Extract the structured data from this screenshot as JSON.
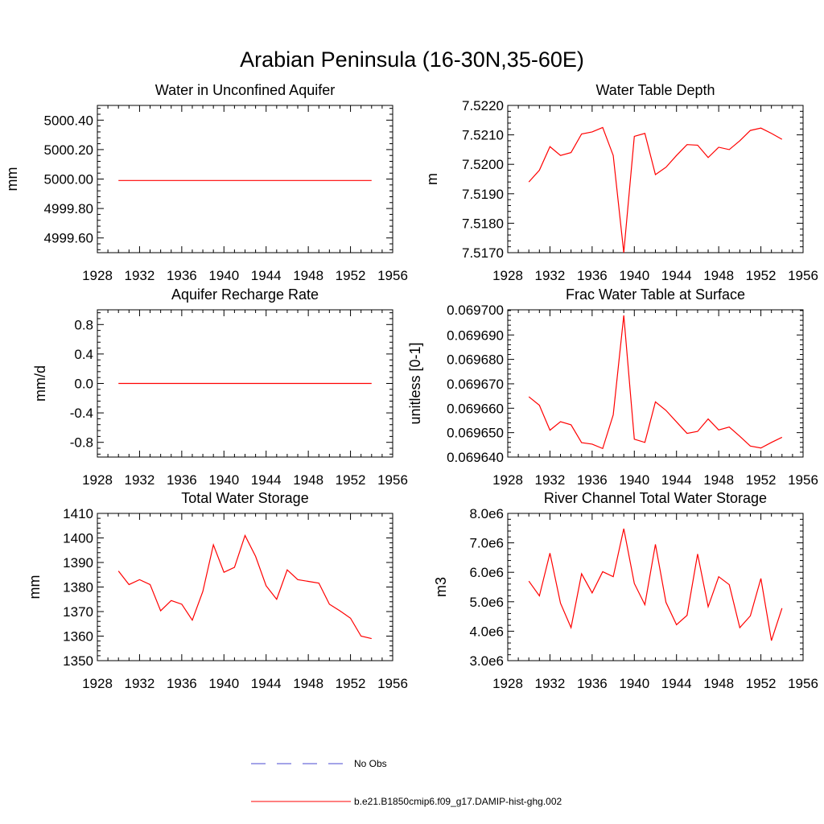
{
  "figure": {
    "title": "Arabian Peninsula (16-30N,35-60E)"
  },
  "colors": {
    "model_line": "#ff0000",
    "obs_line": "#4a4ad0"
  },
  "legend": {
    "entries": [
      {
        "label": "No Obs",
        "style": "dashed",
        "color": "#4a4ad0"
      },
      {
        "label": "b.e21.B1850cmip6.f09_g17.DAMIP-hist-ghg.002",
        "style": "solid",
        "color": "#ff0000"
      }
    ]
  },
  "chart_data": [
    {
      "id": "aquifer",
      "type": "line",
      "title": "Water in Unconfined Aquifer",
      "ylabel": "mm",
      "xlabel": "",
      "xlim": [
        1928,
        1956
      ],
      "ylim": [
        4999.5,
        5000.5
      ],
      "xticks": [
        1928,
        1932,
        1936,
        1940,
        1944,
        1948,
        1952,
        1956
      ],
      "xtick_labels": [
        "1928",
        "1932",
        "1936",
        "1940",
        "1944",
        "1948",
        "1952",
        "1956"
      ],
      "yticks": [
        4999.6,
        4999.8,
        5000.0,
        5000.2,
        5000.4
      ],
      "ytick_labels": [
        "4999.60",
        "4999.80",
        "5000.00",
        "5000.20",
        "5000.40"
      ],
      "series": [
        {
          "color": "#ff0000",
          "x": [
            1930,
            1954
          ],
          "y": [
            4999.99,
            4999.99
          ]
        }
      ]
    },
    {
      "id": "wtd",
      "type": "line",
      "title": "Water Table Depth",
      "ylabel": "m",
      "xlabel": "",
      "xlim": [
        1928,
        1956
      ],
      "ylim": [
        7.517,
        7.522
      ],
      "xticks": [
        1928,
        1932,
        1936,
        1940,
        1944,
        1948,
        1952,
        1956
      ],
      "xtick_labels": [
        "1928",
        "1932",
        "1936",
        "1940",
        "1944",
        "1948",
        "1952",
        "1956"
      ],
      "yticks": [
        7.517,
        7.518,
        7.519,
        7.52,
        7.521,
        7.522
      ],
      "ytick_labels": [
        "7.5170",
        "7.5180",
        "7.5190",
        "7.5200",
        "7.5210",
        "7.5220"
      ],
      "series": [
        {
          "color": "#ff0000",
          "x": [
            1930,
            1931,
            1932,
            1933,
            1934,
            1935,
            1936,
            1937,
            1938,
            1939,
            1940,
            1941,
            1942,
            1943,
            1944,
            1945,
            1946,
            1947,
            1948,
            1949,
            1950,
            1951,
            1952,
            1953,
            1954
          ],
          "y": [
            7.5194,
            7.5198,
            7.5206,
            7.5203,
            7.5204,
            7.52103,
            7.5211,
            7.52125,
            7.5203,
            7.517,
            7.52095,
            7.52105,
            7.51965,
            7.5199,
            7.5203,
            7.52067,
            7.52065,
            7.52023,
            7.52058,
            7.5205,
            7.5208,
            7.52115,
            7.52123,
            7.52105,
            7.52085
          ]
        }
      ]
    },
    {
      "id": "recharge",
      "type": "line",
      "title": "Aquifer Recharge Rate",
      "ylabel": "mm/d",
      "xlabel": "",
      "xlim": [
        1928,
        1956
      ],
      "ylim": [
        -1.0,
        1.0
      ],
      "xticks": [
        1928,
        1932,
        1936,
        1940,
        1944,
        1948,
        1952,
        1956
      ],
      "xtick_labels": [
        "1928",
        "1932",
        "1936",
        "1940",
        "1944",
        "1948",
        "1952",
        "1956"
      ],
      "yticks": [
        -0.8,
        -0.4,
        0.0,
        0.4,
        0.8
      ],
      "ytick_labels": [
        "-0.8",
        "-0.4",
        "0.0",
        "0.4",
        "0.8"
      ],
      "series": [
        {
          "color": "#ff0000",
          "x": [
            1930,
            1954
          ],
          "y": [
            0.0,
            0.0
          ]
        }
      ]
    },
    {
      "id": "frac",
      "type": "line",
      "title": "Frac Water Table at Surface",
      "ylabel": "unitless [0-1]",
      "xlabel": "",
      "xlim": [
        1928,
        1956
      ],
      "ylim": [
        0.0696397,
        0.0697
      ],
      "xticks": [
        1928,
        1932,
        1936,
        1940,
        1944,
        1948,
        1952,
        1956
      ],
      "xtick_labels": [
        "1928",
        "1932",
        "1936",
        "1940",
        "1944",
        "1948",
        "1952",
        "1956"
      ],
      "yticks": [
        0.0696397,
        0.0696497,
        0.0696597,
        0.0696697,
        0.0696797,
        0.0696897,
        0.0697
      ],
      "ytick_labels": [
        "0.069640",
        "0.069650",
        "0.069660",
        "0.069670",
        "0.069680",
        "0.069690",
        "0.069700"
      ],
      "series": [
        {
          "color": "#ff0000",
          "x": [
            1930,
            1931,
            1932,
            1933,
            1934,
            1935,
            1936,
            1937,
            1938,
            1939,
            1940,
            1941,
            1942,
            1943,
            1944,
            1945,
            1946,
            1947,
            1948,
            1949,
            1950,
            1951,
            1952,
            1953,
            1954
          ],
          "y": [
            0.0696644,
            0.0696609,
            0.0696507,
            0.0696542,
            0.0696529,
            0.0696456,
            0.069645,
            0.0696432,
            0.069657,
            0.0696977,
            0.069647,
            0.0696457,
            0.0696623,
            0.0696588,
            0.0696541,
            0.0696494,
            0.0696502,
            0.0696553,
            0.0696508,
            0.069652,
            0.0696482,
            0.0696442,
            0.0696434,
            0.0696457,
            0.0696478
          ]
        }
      ]
    },
    {
      "id": "tws",
      "type": "line",
      "title": "Total Water Storage",
      "ylabel": "mm",
      "xlabel": "",
      "xlim": [
        1928,
        1956
      ],
      "ylim": [
        1350,
        1410
      ],
      "xticks": [
        1928,
        1932,
        1936,
        1940,
        1944,
        1948,
        1952,
        1956
      ],
      "xtick_labels": [
        "1928",
        "1932",
        "1936",
        "1940",
        "1944",
        "1948",
        "1952",
        "1956"
      ],
      "yticks": [
        1350,
        1360,
        1370,
        1380,
        1390,
        1400,
        1410
      ],
      "ytick_labels": [
        "1350",
        "1360",
        "1370",
        "1380",
        "1390",
        "1400",
        "1410"
      ],
      "series": [
        {
          "color": "#ff0000",
          "x": [
            1930,
            1931,
            1932,
            1933,
            1934,
            1935,
            1936,
            1937,
            1938,
            1939,
            1940,
            1941,
            1942,
            1943,
            1944,
            1945,
            1946,
            1947,
            1948,
            1949,
            1950,
            1951,
            1952,
            1953,
            1954
          ],
          "y": [
            1386.5,
            1381,
            1383,
            1381,
            1370.3,
            1374.5,
            1373,
            1366.5,
            1378.2,
            1397.2,
            1386,
            1388,
            1401,
            1392.5,
            1380.5,
            1375,
            1387,
            1383,
            1382.3,
            1381.6,
            1373,
            1370.3,
            1367.3,
            1360,
            1359
          ]
        }
      ]
    },
    {
      "id": "river",
      "type": "line",
      "title": "River Channel Total Water Storage",
      "ylabel": "m3",
      "xlabel": "",
      "xlim": [
        1928,
        1956
      ],
      "ylim": [
        3000000,
        8000000
      ],
      "xticks": [
        1928,
        1932,
        1936,
        1940,
        1944,
        1948,
        1952,
        1956
      ],
      "xtick_labels": [
        "1928",
        "1932",
        "1936",
        "1940",
        "1944",
        "1948",
        "1952",
        "1956"
      ],
      "yticks": [
        3000000,
        4000000,
        5000000,
        6000000,
        7000000,
        8000000
      ],
      "ytick_labels": [
        "3.0e6",
        "4.0e6",
        "5.0e6",
        "6.0e6",
        "7.0e6",
        "8.0e6"
      ],
      "series": [
        {
          "color": "#ff0000",
          "x": [
            1930,
            1931,
            1932,
            1933,
            1934,
            1935,
            1936,
            1937,
            1938,
            1939,
            1940,
            1941,
            1942,
            1943,
            1944,
            1945,
            1946,
            1947,
            1948,
            1949,
            1950,
            1951,
            1952,
            1953,
            1954
          ],
          "y": [
            5700000,
            5200000,
            6650000,
            4950000,
            4120000,
            5950000,
            5300000,
            6020000,
            5850000,
            7480000,
            5620000,
            4900000,
            6950000,
            4980000,
            4220000,
            4540000,
            6620000,
            4830000,
            5850000,
            5580000,
            4120000,
            4520000,
            5790000,
            3680000,
            4780000
          ]
        }
      ]
    }
  ]
}
